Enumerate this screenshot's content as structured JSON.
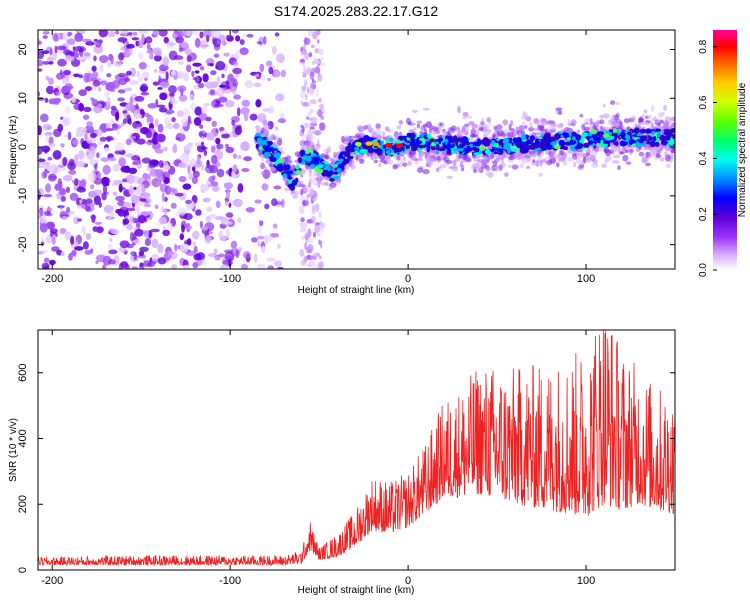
{
  "title": "S174.2025.283.22.17.G12",
  "chart_data": [
    {
      "type": "heatmap",
      "title": "S174.2025.283.22.17.G12",
      "xlabel": "Height of straight line (km)",
      "ylabel": "Frequency (Hz)",
      "xlim": [
        -208,
        150
      ],
      "ylim": [
        -25,
        24
      ],
      "xticks": [
        -200,
        -100,
        0,
        100
      ],
      "yticks": [
        -20,
        -10,
        0,
        10,
        20
      ],
      "colorbar": {
        "label": "Normalized spectral amplitude",
        "range": [
          0.0,
          0.86
        ],
        "ticks": [
          0.0,
          0.2,
          0.4,
          0.6,
          0.8
        ],
        "colormap": [
          "#ffffff",
          "#d9b3ff",
          "#9b30ff",
          "#5a00d6",
          "#0000ff",
          "#00aaff",
          "#00ffee",
          "#00ff66",
          "#a0ff00",
          "#ffff00",
          "#ff9900",
          "#ff0000",
          "#ff0099"
        ]
      },
      "ridge": {
        "description": "signal line frequency vs height",
        "x": [
          -85,
          -78,
          -70,
          -64,
          -60,
          -55,
          -48,
          -42,
          -36,
          -30,
          -25,
          -20,
          -15,
          -8,
          0,
          10,
          20,
          40,
          60,
          80,
          100,
          120,
          150
        ],
        "y": [
          1.5,
          -0.5,
          -4,
          -8,
          -1.5,
          -2,
          -4,
          -6,
          -2,
          0,
          0.5,
          0.5,
          0,
          0,
          1,
          1,
          0.5,
          0,
          0.5,
          1,
          1.5,
          2,
          2
        ]
      },
      "noise_region_x": [
        -208,
        -70
      ],
      "noise_column_x": [
        -60,
        -48
      ]
    },
    {
      "type": "line",
      "xlabel": "Height of straight line (km)",
      "ylabel": "SNR (10 * v/v)",
      "xlim": [
        -208,
        150
      ],
      "ylim": [
        0,
        730
      ],
      "xticks": [
        -200,
        -100,
        0,
        100
      ],
      "yticks": [
        0,
        200,
        400,
        600
      ],
      "color": "#ee2222",
      "envelope": {
        "x": [
          -208,
          -150,
          -100,
          -70,
          -60,
          -55,
          -50,
          -40,
          -30,
          -20,
          -10,
          0,
          10,
          20,
          30,
          40,
          60,
          80,
          100,
          110,
          120,
          130,
          140,
          150
        ],
        "base": [
          15,
          15,
          15,
          15,
          20,
          60,
          30,
          40,
          70,
          120,
          110,
          130,
          170,
          220,
          220,
          230,
          200,
          180,
          160,
          200,
          180,
          200,
          180,
          170
        ],
        "spread": [
          25,
          30,
          30,
          30,
          40,
          90,
          40,
          70,
          110,
          170,
          160,
          170,
          220,
          300,
          340,
          400,
          420,
          460,
          520,
          650,
          500,
          420,
          380,
          380
        ]
      }
    }
  ]
}
